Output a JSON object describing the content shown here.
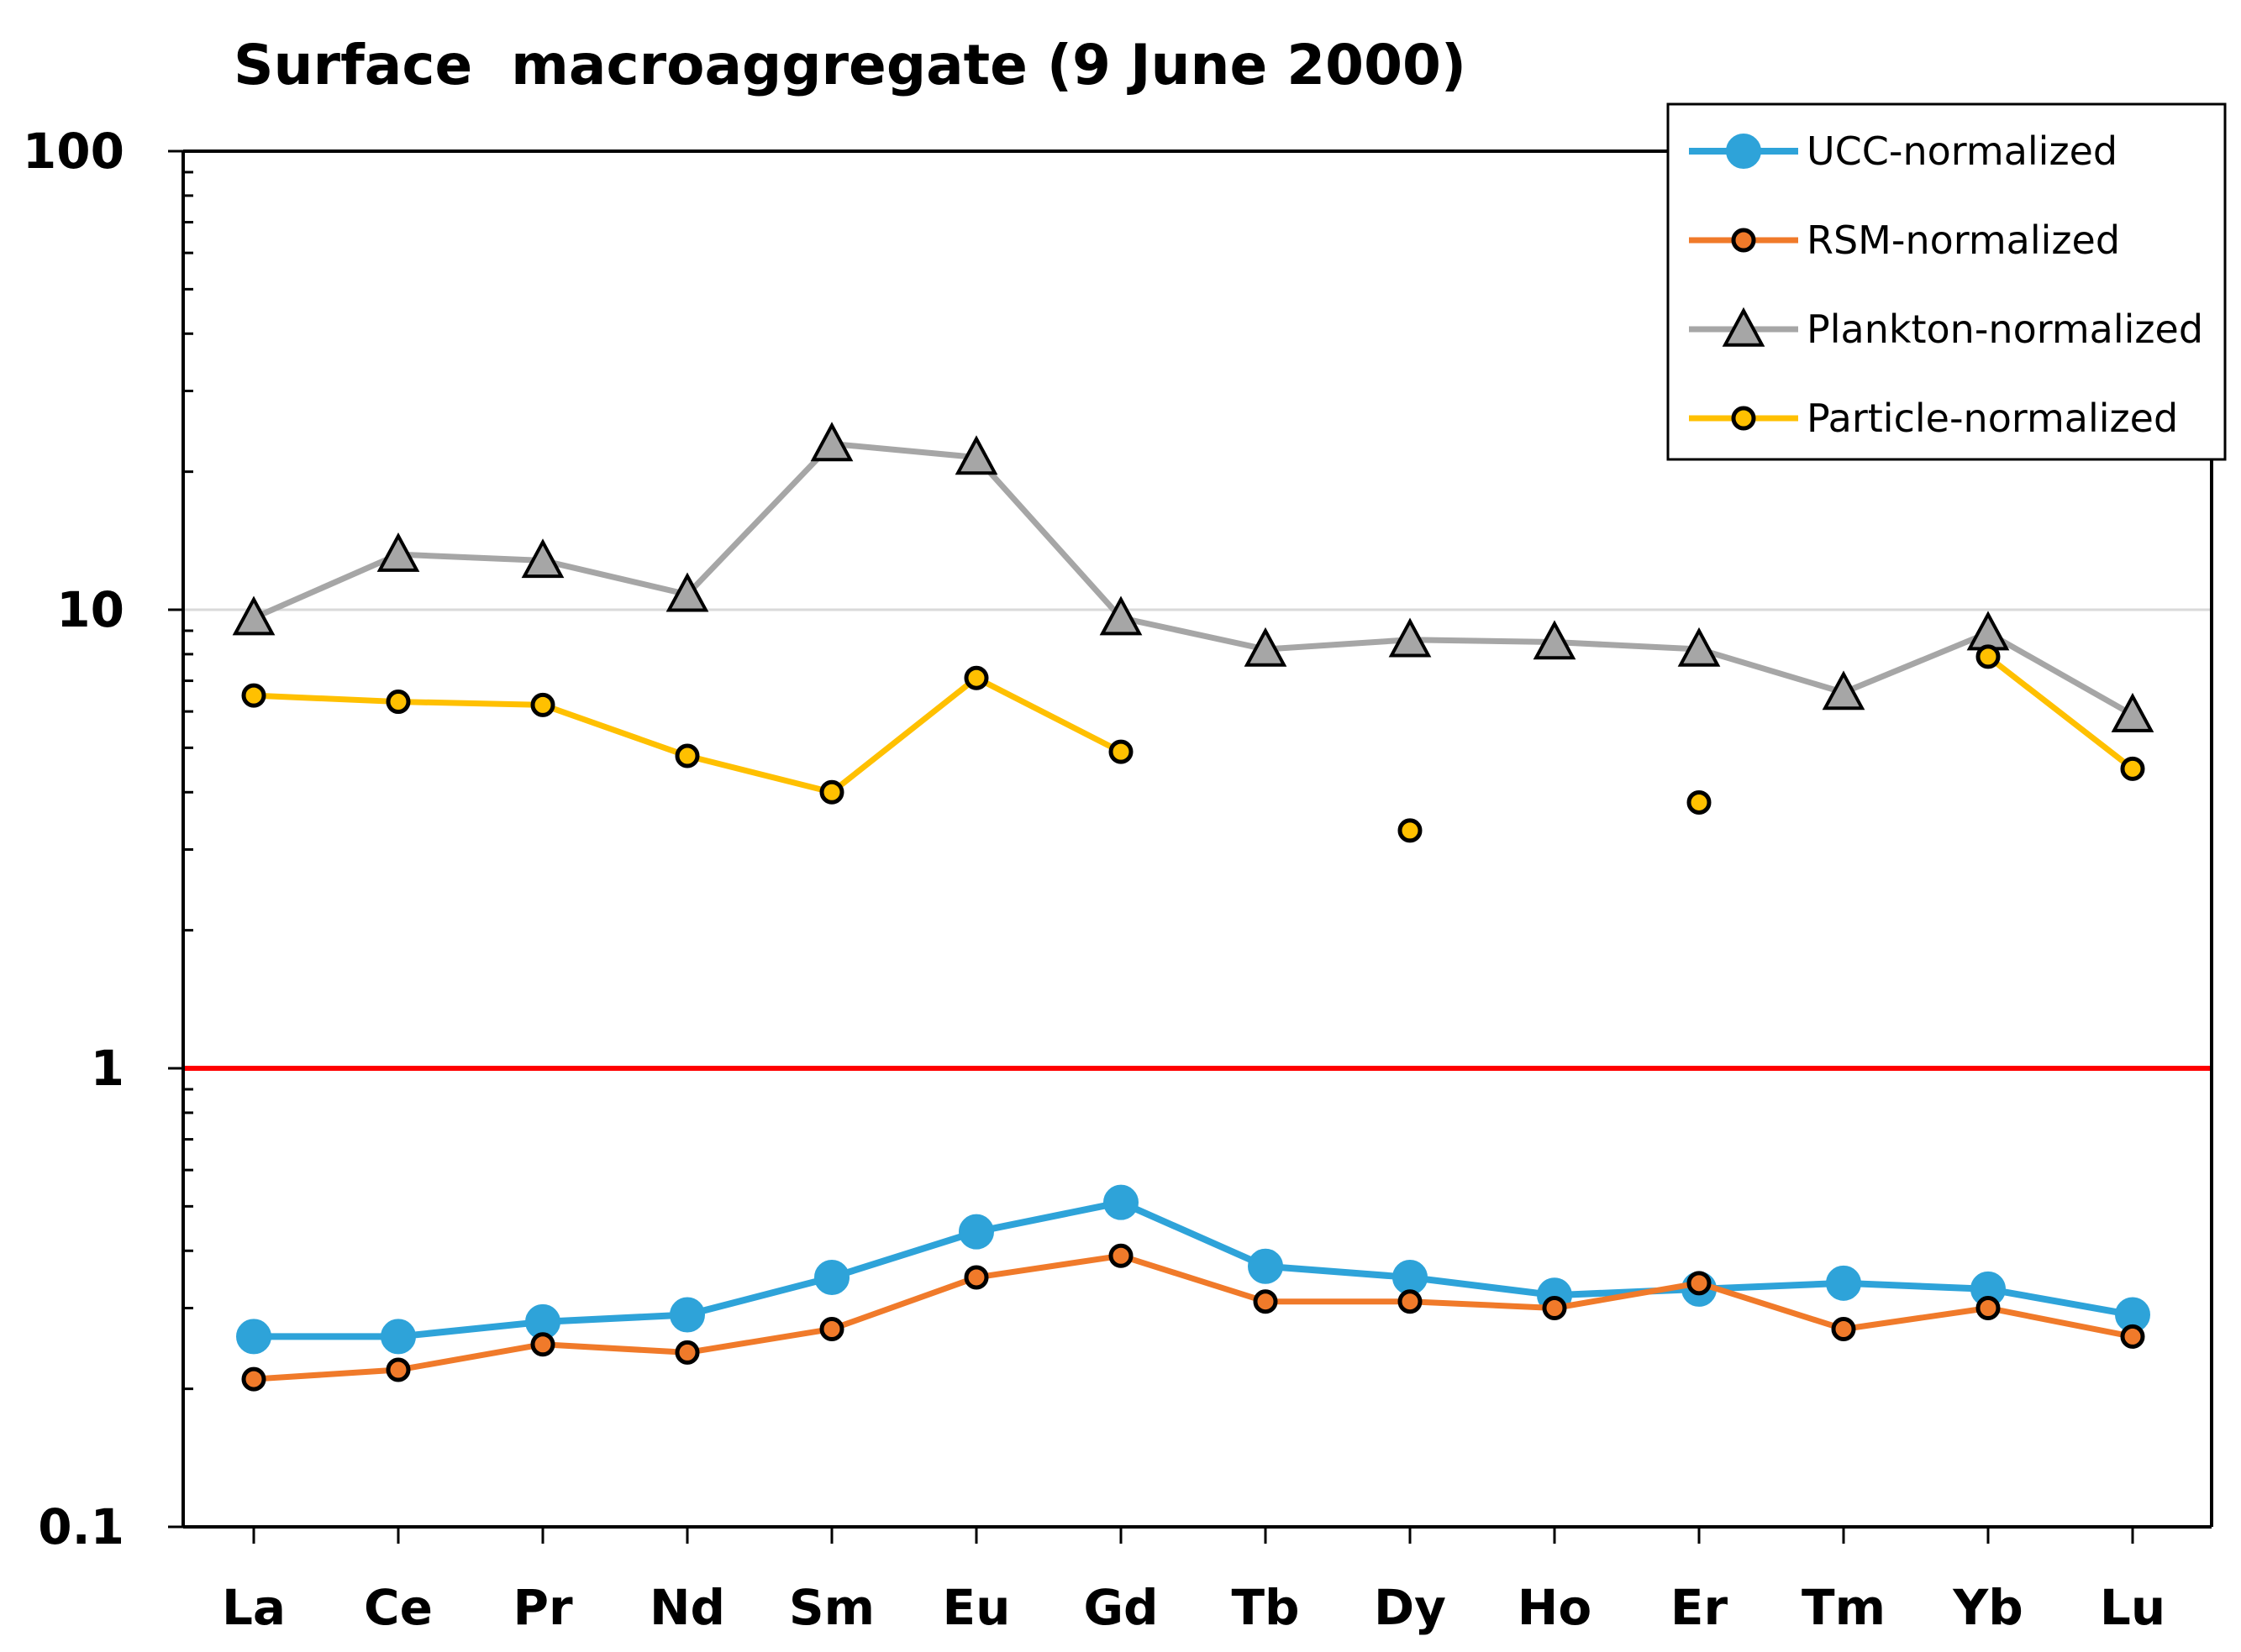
{
  "chart_data": {
    "type": "line",
    "title": "Surface  macroaggregate (9 June 2000)",
    "xlabel": "",
    "ylabel": "",
    "y_scale": "log",
    "ylim": [
      0.1,
      100
    ],
    "y_ticks": [
      0.1,
      1,
      10,
      100
    ],
    "y_tick_labels": [
      "0.1",
      "1",
      "10",
      "100"
    ],
    "categories": [
      "La",
      "Ce",
      "Pr",
      "Nd",
      "Sm",
      "Eu",
      "Gd",
      "Tb",
      "Dy",
      "Ho",
      "Er",
      "Tm",
      "Yb",
      "Lu"
    ],
    "grid": "horizontal line at 10 only",
    "reference_line": {
      "value": 1,
      "color": "#ff0000"
    },
    "legend_position": "top-right",
    "series": [
      {
        "name": "UCC-normalized",
        "color": "#2ea3d9",
        "marker": "circle-large",
        "values": [
          0.26,
          0.26,
          0.28,
          0.29,
          0.35,
          0.44,
          0.51,
          0.37,
          0.35,
          0.32,
          0.33,
          0.34,
          0.33,
          0.29
        ]
      },
      {
        "name": "RSM-normalized",
        "color": "#f07a2a",
        "marker": "circle-small",
        "values": [
          0.21,
          0.22,
          0.25,
          0.24,
          0.27,
          0.35,
          0.39,
          0.31,
          0.31,
          0.3,
          0.34,
          0.27,
          0.3,
          0.26
        ]
      },
      {
        "name": "Plankton-normalized",
        "color": "#a6a6a6",
        "marker": "triangle",
        "values": [
          9.6,
          13.2,
          12.8,
          10.8,
          23.0,
          21.5,
          9.6,
          8.2,
          8.6,
          8.5,
          8.2,
          6.6,
          8.9,
          5.9
        ]
      },
      {
        "name": "Particle-normalized",
        "color": "#ffc000",
        "marker": "circle-small",
        "values": [
          6.5,
          6.3,
          6.2,
          4.8,
          4.0,
          7.1,
          4.9,
          null,
          3.3,
          null,
          3.8,
          null,
          7.9,
          4.5
        ]
      }
    ]
  },
  "colors": {
    "axis": "#000000",
    "grid": "#d9d9d9",
    "marker_edge": "#000000",
    "plankton_marker_fill": "#a6a6a6"
  }
}
